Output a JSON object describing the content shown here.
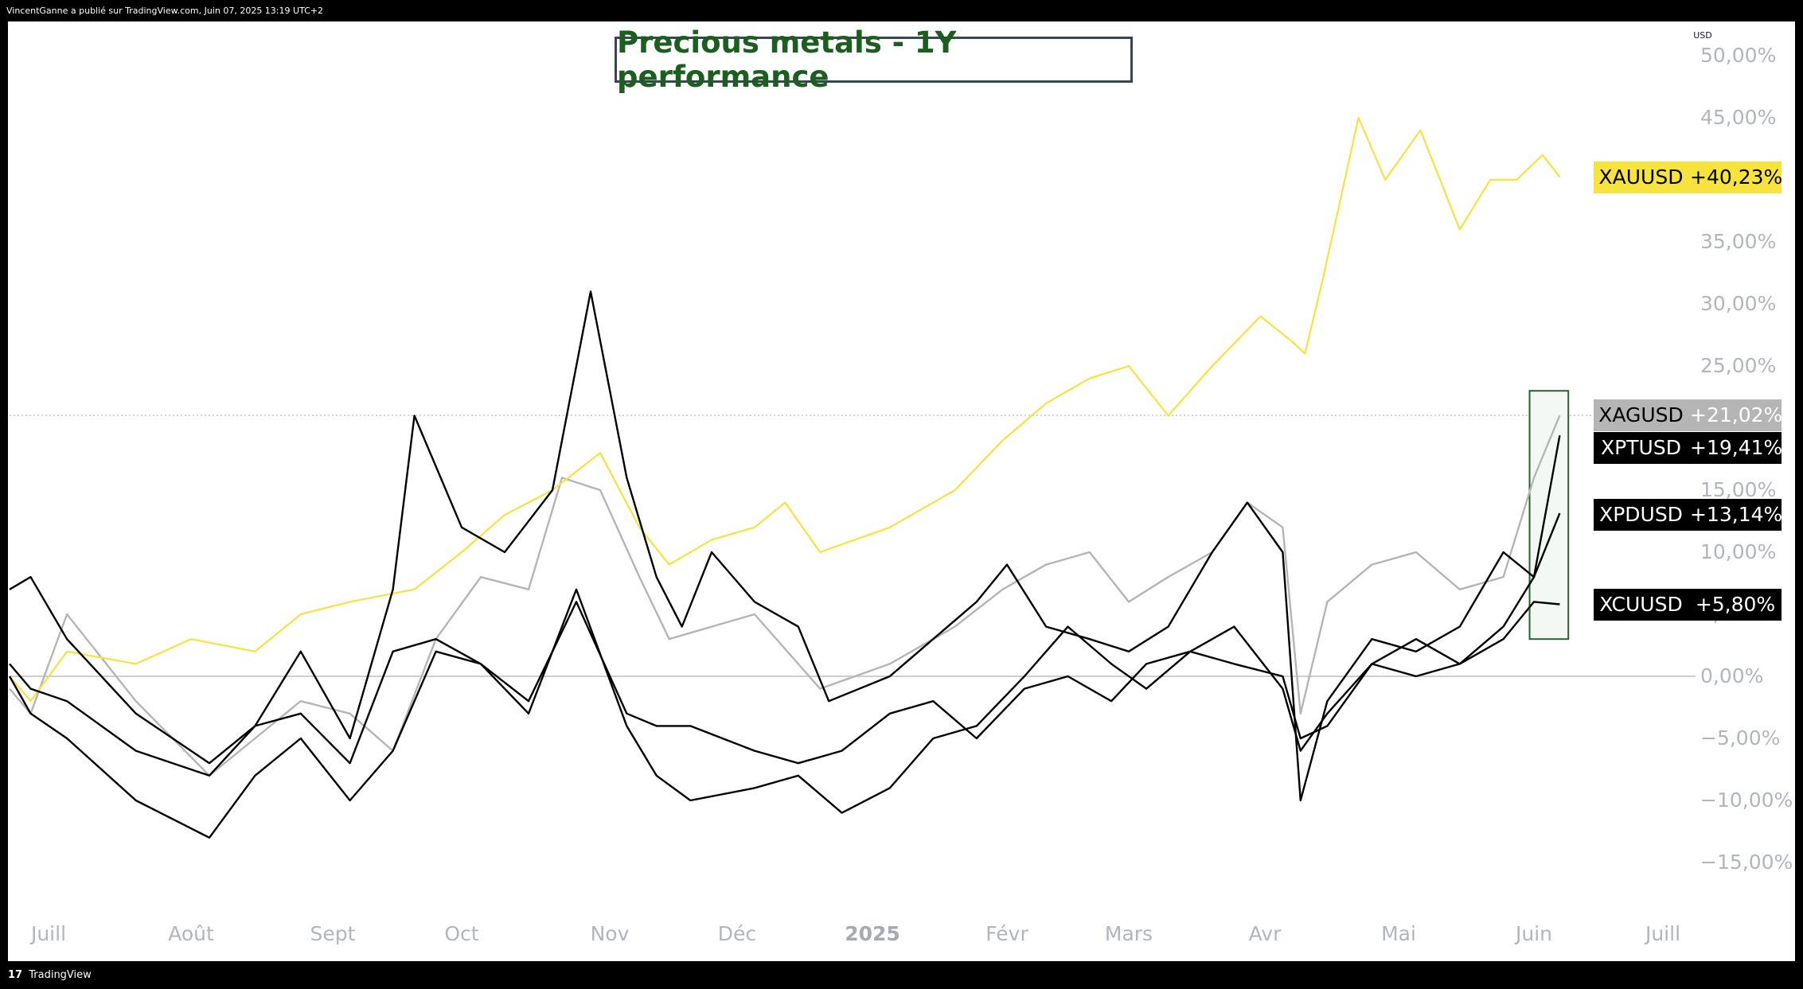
{
  "header": {
    "publisher_text": "VincentGanne a publié sur TradingView.com, Juin 07, 2025 13:19 UTC+2"
  },
  "footer": {
    "logo_glyph": "17",
    "brand": "TradingView"
  },
  "title": "Precious metals - 1Y performance",
  "currency_label": "USD",
  "colors": {
    "gold": "#f6e33b",
    "silver": "#b5b5b5",
    "black": "#000000",
    "title_green": "#1b5e20",
    "highlight_border": "#2e5e34",
    "highlight_fill": "#f4f8f4",
    "gridline_zero": "#cfcfcf",
    "axis_text": "#b2b5be"
  },
  "y_axis": {
    "ticks": [
      "50,00%",
      "45,00%",
      "40,00%",
      "35,00%",
      "30,00%",
      "25,00%",
      "15,00%",
      "10,00%",
      "5,00%",
      "0,00%",
      "−5,00%",
      "−10,00%",
      "−15,00%"
    ]
  },
  "x_axis": {
    "ticks": [
      "Juill",
      "Août",
      "Sept",
      "Oct",
      "Nov",
      "Déc",
      "2025",
      "Févr",
      "Mars",
      "Avr",
      "Mai",
      "Juin",
      "Juill"
    ]
  },
  "tags": {
    "xau": {
      "name": "XAUUSD",
      "value": "+40,23%"
    },
    "xag": {
      "name": "XAGUSD",
      "value": "+21,02%"
    },
    "xpt": {
      "name": "XPTUSD",
      "value": "+19,41%"
    },
    "xpd": {
      "name": "XPDUSD",
      "value": "+13,14%"
    },
    "xcu": {
      "name": "XCUUSD",
      "value": "+5,80%"
    }
  },
  "chart_data": {
    "type": "line",
    "title": "Precious metals - 1Y performance",
    "y_unit": "%",
    "ylim": [
      -18,
      52
    ],
    "x_range_months": [
      "2024-06-07",
      "2025-07-15"
    ],
    "x_tick_labels": [
      "Juill",
      "Août",
      "Sept",
      "Oct",
      "Nov",
      "Déc",
      "2025",
      "Févr",
      "Mars",
      "Avr",
      "Mai",
      "Juin",
      "Juill"
    ],
    "baseline": 0,
    "last_value_line": 21.02,
    "highlight_box": {
      "x_start": "2025-05-31",
      "x_end": "2025-06-09",
      "y_low": 3.0,
      "y_high": 23.0
    },
    "series": [
      {
        "name": "XAUUSD",
        "color": "#f6e33b",
        "last": 40.23,
        "points": [
          [
            "2024-06-07",
            0
          ],
          [
            "2024-06-20",
            -2
          ],
          [
            "2024-07-05",
            2
          ],
          [
            "2024-07-20",
            1
          ],
          [
            "2024-08-01",
            3
          ],
          [
            "2024-08-15",
            2
          ],
          [
            "2024-08-25",
            5
          ],
          [
            "2024-09-05",
            6
          ],
          [
            "2024-09-20",
            7
          ],
          [
            "2024-10-01",
            10
          ],
          [
            "2024-10-10",
            13
          ],
          [
            "2024-10-20",
            15
          ],
          [
            "2024-10-30",
            18
          ],
          [
            "2024-11-08",
            12
          ],
          [
            "2024-11-15",
            9
          ],
          [
            "2024-11-25",
            11
          ],
          [
            "2024-12-05",
            12
          ],
          [
            "2024-12-12",
            14
          ],
          [
            "2024-12-20",
            10
          ],
          [
            "2025-01-05",
            12
          ],
          [
            "2025-01-20",
            15
          ],
          [
            "2025-01-31",
            19
          ],
          [
            "2025-02-10",
            22
          ],
          [
            "2025-02-20",
            24
          ],
          [
            "2025-03-01",
            25
          ],
          [
            "2025-03-10",
            21
          ],
          [
            "2025-03-20",
            25
          ],
          [
            "2025-03-31",
            29
          ],
          [
            "2025-04-07",
            27
          ],
          [
            "2025-04-10",
            26
          ],
          [
            "2025-04-14",
            32
          ],
          [
            "2025-04-22",
            45
          ],
          [
            "2025-04-28",
            40
          ],
          [
            "2025-05-06",
            44
          ],
          [
            "2025-05-15",
            36
          ],
          [
            "2025-05-22",
            40
          ],
          [
            "2025-05-28",
            40
          ],
          [
            "2025-06-03",
            42
          ],
          [
            "2025-06-07",
            40.23
          ]
        ]
      },
      {
        "name": "XAGUSD",
        "color": "#b5b5b5",
        "last": 21.02,
        "points": [
          [
            "2024-06-07",
            -1
          ],
          [
            "2024-06-20",
            -3
          ],
          [
            "2024-07-05",
            5
          ],
          [
            "2024-07-20",
            -2
          ],
          [
            "2024-08-05",
            -8
          ],
          [
            "2024-08-15",
            -5
          ],
          [
            "2024-08-25",
            -2
          ],
          [
            "2024-09-05",
            -3
          ],
          [
            "2024-09-15",
            -6
          ],
          [
            "2024-09-25",
            3
          ],
          [
            "2024-10-05",
            8
          ],
          [
            "2024-10-15",
            7
          ],
          [
            "2024-10-22",
            16
          ],
          [
            "2024-10-30",
            15
          ],
          [
            "2024-11-08",
            8
          ],
          [
            "2024-11-15",
            3
          ],
          [
            "2024-11-25",
            4
          ],
          [
            "2024-12-05",
            5
          ],
          [
            "2024-12-20",
            -1
          ],
          [
            "2025-01-05",
            1
          ],
          [
            "2025-01-20",
            4
          ],
          [
            "2025-01-31",
            7
          ],
          [
            "2025-02-10",
            9
          ],
          [
            "2025-02-20",
            10
          ],
          [
            "2025-03-01",
            6
          ],
          [
            "2025-03-10",
            8
          ],
          [
            "2025-03-20",
            10
          ],
          [
            "2025-03-28",
            14
          ],
          [
            "2025-04-05",
            12
          ],
          [
            "2025-04-09",
            -3
          ],
          [
            "2025-04-15",
            6
          ],
          [
            "2025-04-25",
            9
          ],
          [
            "2025-05-05",
            10
          ],
          [
            "2025-05-15",
            7
          ],
          [
            "2025-05-25",
            8
          ],
          [
            "2025-06-01",
            16
          ],
          [
            "2025-06-07",
            21.02
          ]
        ]
      },
      {
        "name": "XPTUSD",
        "color": "#000000",
        "last": 19.41,
        "points": [
          [
            "2024-06-07",
            7
          ],
          [
            "2024-06-20",
            8
          ],
          [
            "2024-07-05",
            3
          ],
          [
            "2024-07-20",
            -3
          ],
          [
            "2024-08-05",
            -7
          ],
          [
            "2024-08-15",
            -4
          ],
          [
            "2024-08-25",
            2
          ],
          [
            "2024-09-05",
            -5
          ],
          [
            "2024-09-15",
            7
          ],
          [
            "2024-09-20",
            21
          ],
          [
            "2024-10-01",
            12
          ],
          [
            "2024-10-10",
            10
          ],
          [
            "2024-10-20",
            15
          ],
          [
            "2024-10-28",
            31
          ],
          [
            "2024-11-05",
            16
          ],
          [
            "2024-11-12",
            8
          ],
          [
            "2024-11-18",
            4
          ],
          [
            "2024-11-25",
            10
          ],
          [
            "2024-12-05",
            6
          ],
          [
            "2024-12-15",
            4
          ],
          [
            "2024-12-22",
            -2
          ],
          [
            "2025-01-05",
            0
          ],
          [
            "2025-01-15",
            3
          ],
          [
            "2025-01-25",
            6
          ],
          [
            "2025-02-01",
            9
          ],
          [
            "2025-02-10",
            4
          ],
          [
            "2025-02-20",
            3
          ],
          [
            "2025-03-01",
            2
          ],
          [
            "2025-03-10",
            4
          ],
          [
            "2025-03-20",
            10
          ],
          [
            "2025-03-28",
            14
          ],
          [
            "2025-04-05",
            10
          ],
          [
            "2025-04-09",
            -10
          ],
          [
            "2025-04-15",
            -2
          ],
          [
            "2025-04-25",
            3
          ],
          [
            "2025-05-05",
            2
          ],
          [
            "2025-05-15",
            4
          ],
          [
            "2025-05-25",
            10
          ],
          [
            "2025-06-01",
            8
          ],
          [
            "2025-06-07",
            19.41
          ]
        ]
      },
      {
        "name": "XPDUSD",
        "color": "#000000",
        "last": 13.14,
        "points": [
          [
            "2024-06-07",
            0
          ],
          [
            "2024-06-20",
            -3
          ],
          [
            "2024-07-05",
            -5
          ],
          [
            "2024-07-20",
            -10
          ],
          [
            "2024-08-05",
            -13
          ],
          [
            "2024-08-15",
            -8
          ],
          [
            "2024-08-25",
            -5
          ],
          [
            "2024-09-05",
            -10
          ],
          [
            "2024-09-15",
            -6
          ],
          [
            "2024-09-25",
            2
          ],
          [
            "2024-10-05",
            1
          ],
          [
            "2024-10-15",
            -3
          ],
          [
            "2024-10-25",
            7
          ],
          [
            "2024-11-05",
            -4
          ],
          [
            "2024-11-12",
            -8
          ],
          [
            "2024-11-20",
            -10
          ],
          [
            "2024-12-05",
            -9
          ],
          [
            "2024-12-15",
            -8
          ],
          [
            "2024-12-25",
            -11
          ],
          [
            "2025-01-05",
            -9
          ],
          [
            "2025-01-15",
            -5
          ],
          [
            "2025-01-25",
            -4
          ],
          [
            "2025-02-05",
            0
          ],
          [
            "2025-02-15",
            4
          ],
          [
            "2025-02-25",
            1
          ],
          [
            "2025-03-05",
            -1
          ],
          [
            "2025-03-15",
            2
          ],
          [
            "2025-03-25",
            4
          ],
          [
            "2025-04-05",
            -1
          ],
          [
            "2025-04-09",
            -6
          ],
          [
            "2025-04-15",
            -3
          ],
          [
            "2025-04-25",
            1
          ],
          [
            "2025-05-05",
            3
          ],
          [
            "2025-05-15",
            1
          ],
          [
            "2025-05-25",
            4
          ],
          [
            "2025-06-01",
            8
          ],
          [
            "2025-06-07",
            13.14
          ]
        ]
      },
      {
        "name": "XCUUSD",
        "color": "#000000",
        "last": 5.8,
        "points": [
          [
            "2024-06-07",
            1
          ],
          [
            "2024-06-20",
            -1
          ],
          [
            "2024-07-05",
            -2
          ],
          [
            "2024-07-20",
            -6
          ],
          [
            "2024-08-05",
            -8
          ],
          [
            "2024-08-15",
            -4
          ],
          [
            "2024-08-25",
            -3
          ],
          [
            "2024-09-05",
            -7
          ],
          [
            "2024-09-15",
            2
          ],
          [
            "2024-09-25",
            3
          ],
          [
            "2024-10-05",
            1
          ],
          [
            "2024-10-15",
            -2
          ],
          [
            "2024-10-25",
            6
          ],
          [
            "2024-11-05",
            -3
          ],
          [
            "2024-11-12",
            -4
          ],
          [
            "2024-11-20",
            -4
          ],
          [
            "2024-12-05",
            -6
          ],
          [
            "2024-12-15",
            -7
          ],
          [
            "2024-12-25",
            -6
          ],
          [
            "2025-01-05",
            -3
          ],
          [
            "2025-01-15",
            -2
          ],
          [
            "2025-01-25",
            -5
          ],
          [
            "2025-02-05",
            -1
          ],
          [
            "2025-02-15",
            0
          ],
          [
            "2025-02-25",
            -2
          ],
          [
            "2025-03-05",
            1
          ],
          [
            "2025-03-15",
            2
          ],
          [
            "2025-03-25",
            1
          ],
          [
            "2025-04-05",
            0
          ],
          [
            "2025-04-09",
            -5
          ],
          [
            "2025-04-15",
            -4
          ],
          [
            "2025-04-25",
            1
          ],
          [
            "2025-05-05",
            0
          ],
          [
            "2025-05-15",
            1
          ],
          [
            "2025-05-25",
            3
          ],
          [
            "2025-06-01",
            6
          ],
          [
            "2025-06-07",
            5.8
          ]
        ]
      }
    ]
  }
}
